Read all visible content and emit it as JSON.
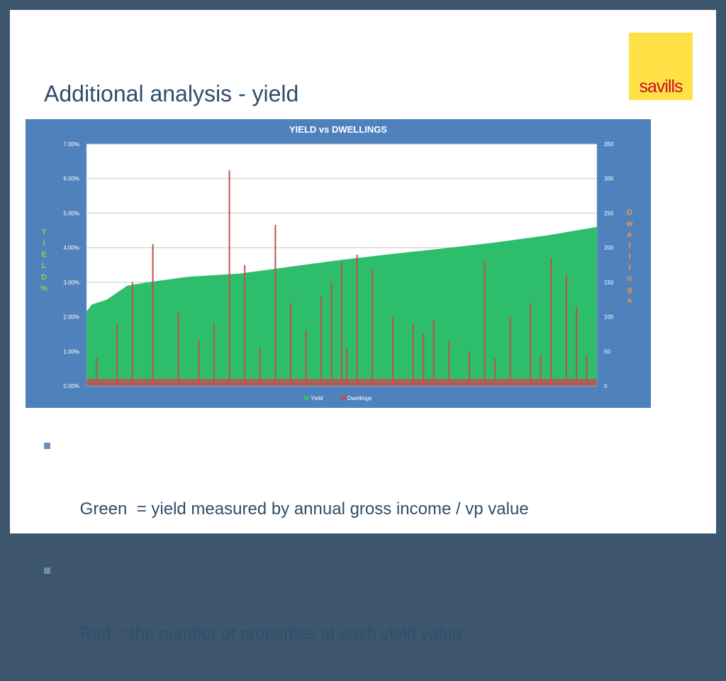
{
  "slide": {
    "title": "Additional analysis - yield",
    "logo_text": "savills",
    "bullets": [
      "Green  = yield measured by annual gross income / vp value",
      "Red = the number of properties at each yield value"
    ]
  },
  "colors": {
    "background": "#3d566e",
    "chart_panel": "#4f81bd",
    "yield": "#2ebd6b",
    "dwellings": "#c0504d",
    "logo_bg": "#ffe146",
    "logo_text": "#c8102e",
    "axis_title_left": "#92d050",
    "axis_title_right": "#f79646"
  },
  "chart_data": {
    "type": "area",
    "title": "YIELD vs DWELLINGS",
    "ylabel": "YIELD%",
    "y2label": "Dwellings",
    "ylim": [
      0,
      7
    ],
    "y2lim": [
      0,
      350
    ],
    "yticks": [
      "0.00%",
      "1.00%",
      "2.00%",
      "3.00%",
      "4.00%",
      "5.00%",
      "6.00%",
      "7.00%"
    ],
    "y2ticks": [
      "0",
      "50",
      "100",
      "150",
      "200",
      "250",
      "300",
      "350"
    ],
    "grid": true,
    "legend_position": "bottom",
    "series": [
      {
        "name": "Yield",
        "kind": "area",
        "axis": "left",
        "x": [
          0,
          1,
          4,
          8,
          12,
          16,
          20,
          30,
          40,
          50,
          60,
          70,
          80,
          90,
          100
        ],
        "values": [
          2.15,
          2.35,
          2.5,
          2.9,
          3.0,
          3.08,
          3.16,
          3.25,
          3.45,
          3.65,
          3.82,
          3.98,
          4.15,
          4.35,
          4.6
        ]
      },
      {
        "name": "Dwellings",
        "kind": "bar",
        "axis": "right",
        "x": [
          2,
          6,
          9,
          13,
          18,
          22,
          25,
          28,
          31,
          34,
          37,
          40,
          43,
          46,
          48,
          50,
          51,
          53,
          56,
          60,
          64,
          66,
          68,
          71,
          75,
          78,
          80,
          83,
          87,
          89,
          91,
          94,
          96,
          98
        ],
        "values": [
          40,
          90,
          150,
          205,
          105,
          65,
          90,
          312,
          175,
          55,
          233,
          120,
          80,
          130,
          150,
          180,
          55,
          190,
          170,
          100,
          90,
          75,
          95,
          65,
          50,
          180,
          40,
          100,
          120,
          45,
          185,
          160,
          115,
          45
        ]
      }
    ]
  }
}
